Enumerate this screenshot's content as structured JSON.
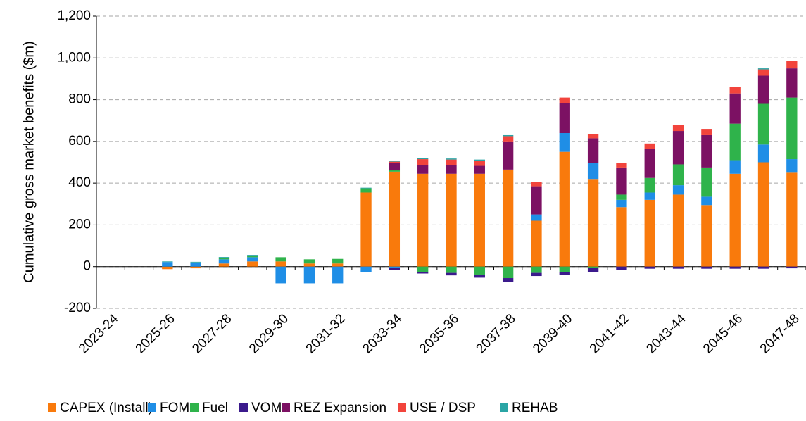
{
  "chart_data": {
    "type": "stacked-bar",
    "y_label": "Cumulative gross market benefits ($m)",
    "categories": [
      "2023-24",
      null,
      "2025-26",
      null,
      "2027-28",
      null,
      "2029-30",
      null,
      "2031-32",
      null,
      "2033-34",
      null,
      "2035-36",
      null,
      "2037-38",
      null,
      "2039-40",
      null,
      "2041-42",
      null,
      "2043-44",
      null,
      "2045-46",
      null,
      "2047-48"
    ],
    "series": [
      {
        "name": "CAPEX (Install)",
        "color": "#f97a0c",
        "values": [
          0,
          0,
          -12,
          -8,
          15,
          25,
          25,
          15,
          15,
          355,
          455,
          445,
          445,
          445,
          465,
          220,
          550,
          420,
          285,
          320,
          345,
          295,
          445,
          500,
          450
        ]
      },
      {
        "name": "FOM",
        "color": "#1f8ee6",
        "values": [
          0,
          0,
          22,
          20,
          20,
          20,
          -80,
          -80,
          -80,
          -25,
          -5,
          0,
          0,
          0,
          0,
          30,
          90,
          75,
          35,
          35,
          45,
          40,
          65,
          85,
          65
        ]
      },
      {
        "name": "Fuel",
        "color": "#2fb34b",
        "values": [
          0,
          0,
          0,
          0,
          8,
          8,
          20,
          20,
          22,
          20,
          8,
          -25,
          -30,
          -38,
          -55,
          -30,
          -25,
          -5,
          25,
          70,
          100,
          140,
          175,
          195,
          295
        ]
      },
      {
        "name": "VOM",
        "color": "#3b1a8c",
        "values": [
          0,
          0,
          0,
          0,
          0,
          0,
          0,
          0,
          0,
          0,
          -10,
          -8,
          -12,
          -15,
          -18,
          -15,
          -15,
          -20,
          -15,
          -10,
          -10,
          -10,
          -10,
          -10,
          -8
        ]
      },
      {
        "name": "REZ Expansion",
        "color": "#7c1163",
        "values": [
          0,
          0,
          0,
          0,
          0,
          0,
          0,
          0,
          0,
          0,
          35,
          40,
          40,
          38,
          135,
          135,
          145,
          120,
          130,
          140,
          160,
          155,
          145,
          135,
          140
        ]
      },
      {
        "name": "USE / DSP",
        "color": "#f2443c",
        "values": [
          0,
          0,
          0,
          0,
          0,
          0,
          0,
          0,
          0,
          0,
          5,
          30,
          28,
          25,
          25,
          20,
          25,
          20,
          20,
          25,
          30,
          30,
          30,
          30,
          35
        ]
      },
      {
        "name": "REHAB",
        "color": "#2aa5a5",
        "values": [
          0,
          0,
          3,
          3,
          3,
          3,
          0,
          0,
          0,
          3,
          5,
          5,
          5,
          5,
          5,
          0,
          0,
          0,
          0,
          0,
          0,
          0,
          0,
          5,
          0
        ]
      }
    ],
    "ylim": [
      -200,
      1200
    ],
    "yticks": [
      -200,
      0,
      200,
      400,
      600,
      800,
      {
        "value": 1000,
        "label": "1,000"
      },
      {
        "value": 1200,
        "label": "1,200"
      }
    ],
    "grid": true,
    "legend": "bottom"
  }
}
